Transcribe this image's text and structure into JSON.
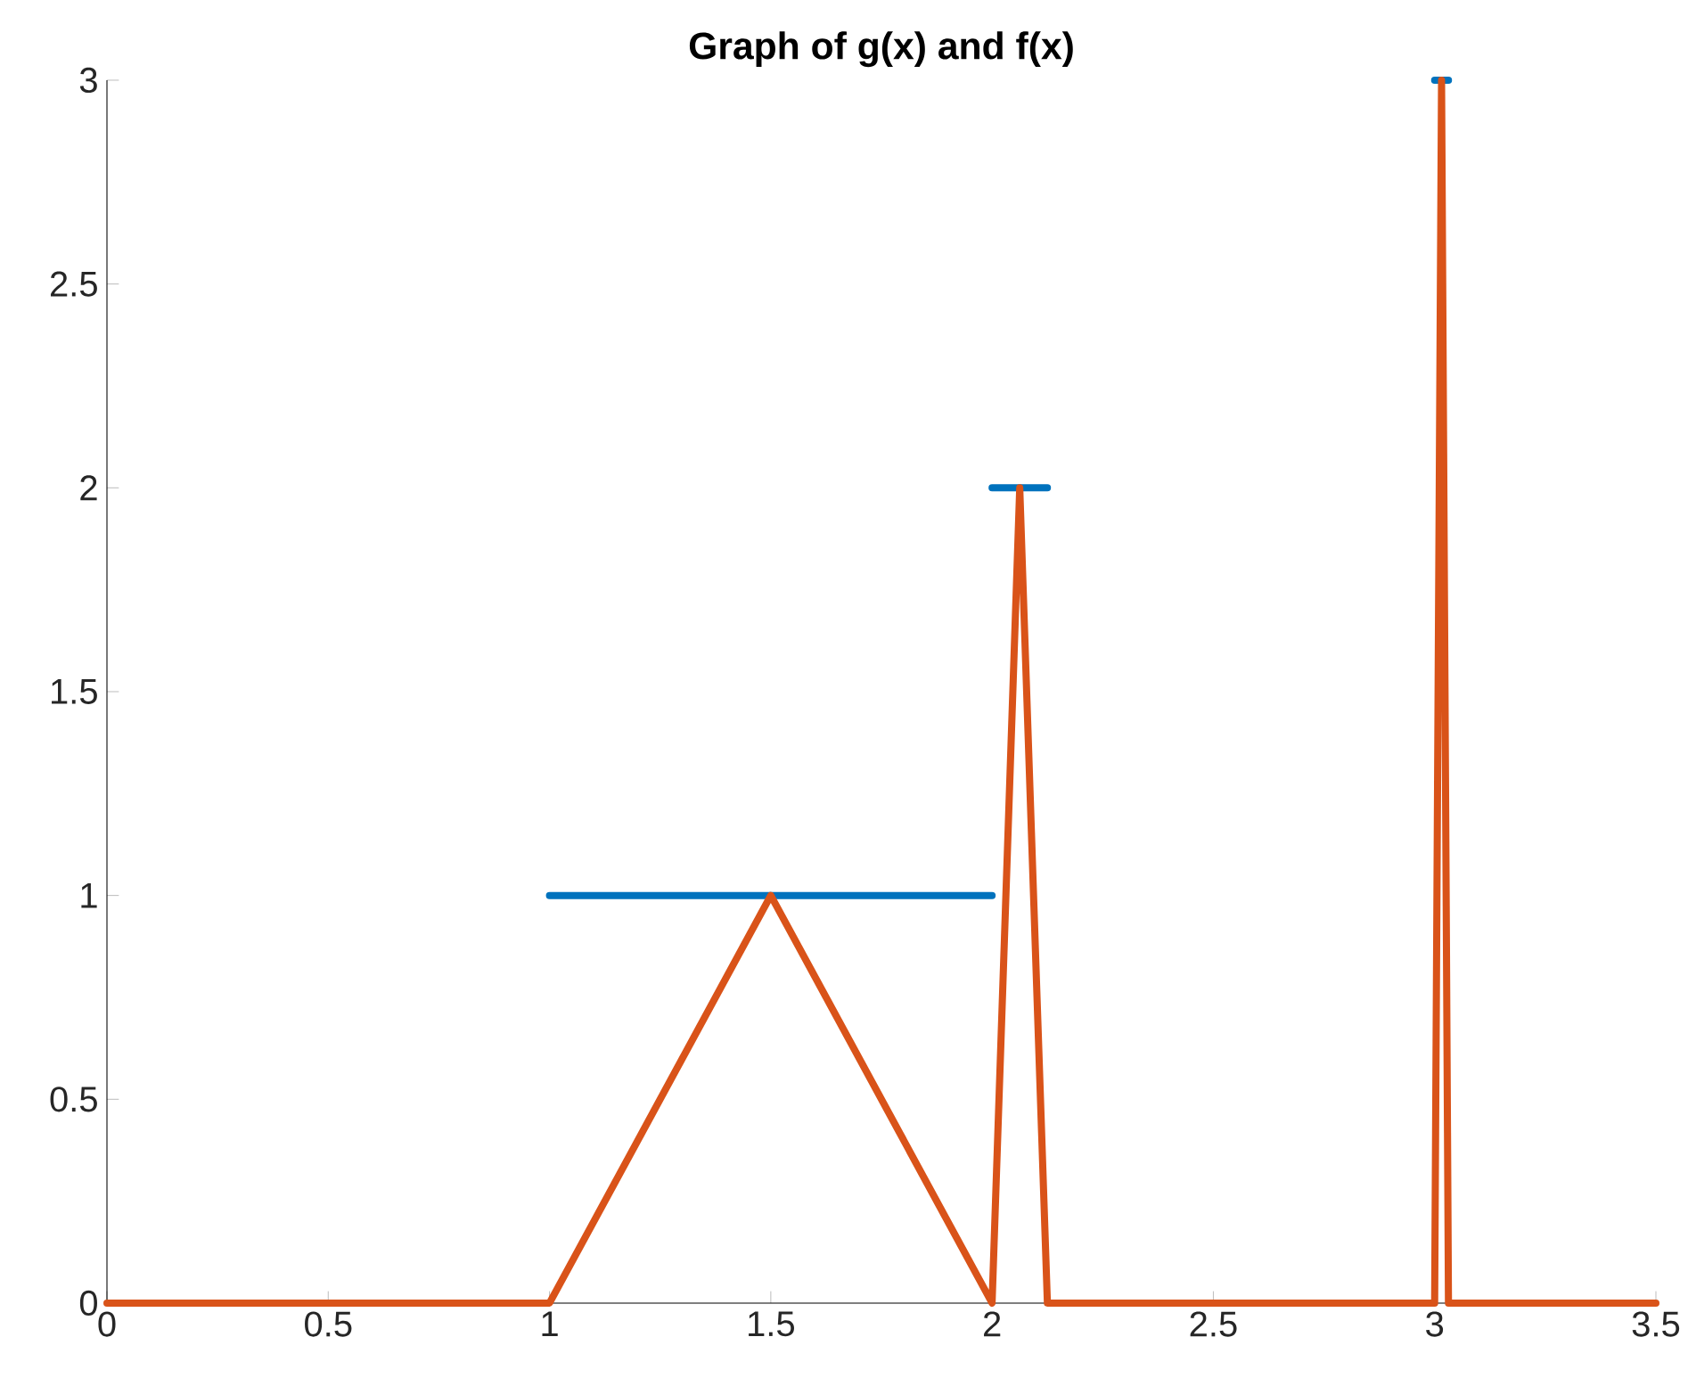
{
  "chart_data": {
    "type": "line",
    "title": "Graph of g(x) and f(x)",
    "series": [
      {
        "color": "#0072bd",
        "x": [
          1,
          2,
          null,
          2,
          2.125,
          null,
          3,
          3.03125
        ],
        "values": [
          1,
          1,
          null,
          2,
          2,
          null,
          3,
          3
        ]
      },
      {
        "color": "#d95319",
        "x": [
          0,
          1,
          1.5,
          2,
          2.0625,
          2.125,
          3,
          3.015625,
          3.03125,
          3.5
        ],
        "values": [
          0,
          0,
          1,
          0,
          2,
          0,
          0,
          3,
          0,
          0
        ]
      }
    ],
    "xlim": [
      0,
      3.5
    ],
    "xticks": [
      0,
      0.5,
      1,
      1.5,
      2,
      2.5,
      3,
      3.5
    ],
    "ylim": [
      0,
      3
    ],
    "yticks": [
      0,
      0.5,
      1,
      1.5,
      2,
      2.5,
      3
    ],
    "line_style": "solid",
    "marker": "none"
  }
}
